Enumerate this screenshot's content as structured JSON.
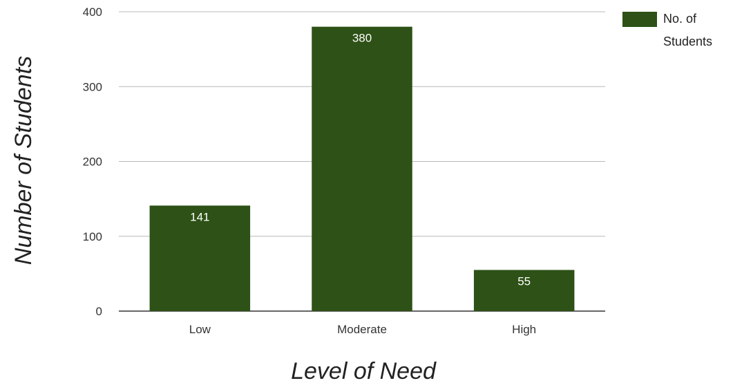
{
  "chart_data": {
    "type": "bar",
    "categories": [
      "Low",
      "Moderate",
      "High"
    ],
    "series": [
      {
        "name": "No. of Students",
        "values": [
          141,
          380,
          55
        ],
        "data_labels": [
          "141",
          "380",
          "55"
        ]
      }
    ],
    "xlabel": "Level of Need",
    "ylabel": "Number of Students",
    "ylim": [
      0,
      400
    ],
    "yticks": [
      0,
      100,
      200,
      300,
      400
    ],
    "ytick_labels": [
      "0",
      "100",
      "200",
      "300",
      "400"
    ],
    "grid": true,
    "legend": {
      "position": "top-right",
      "label_lines": [
        "No. of",
        "Students"
      ]
    },
    "colors": {
      "bar": "#2d5116",
      "grid": "#b8b8b8",
      "baseline": "#333333"
    }
  }
}
